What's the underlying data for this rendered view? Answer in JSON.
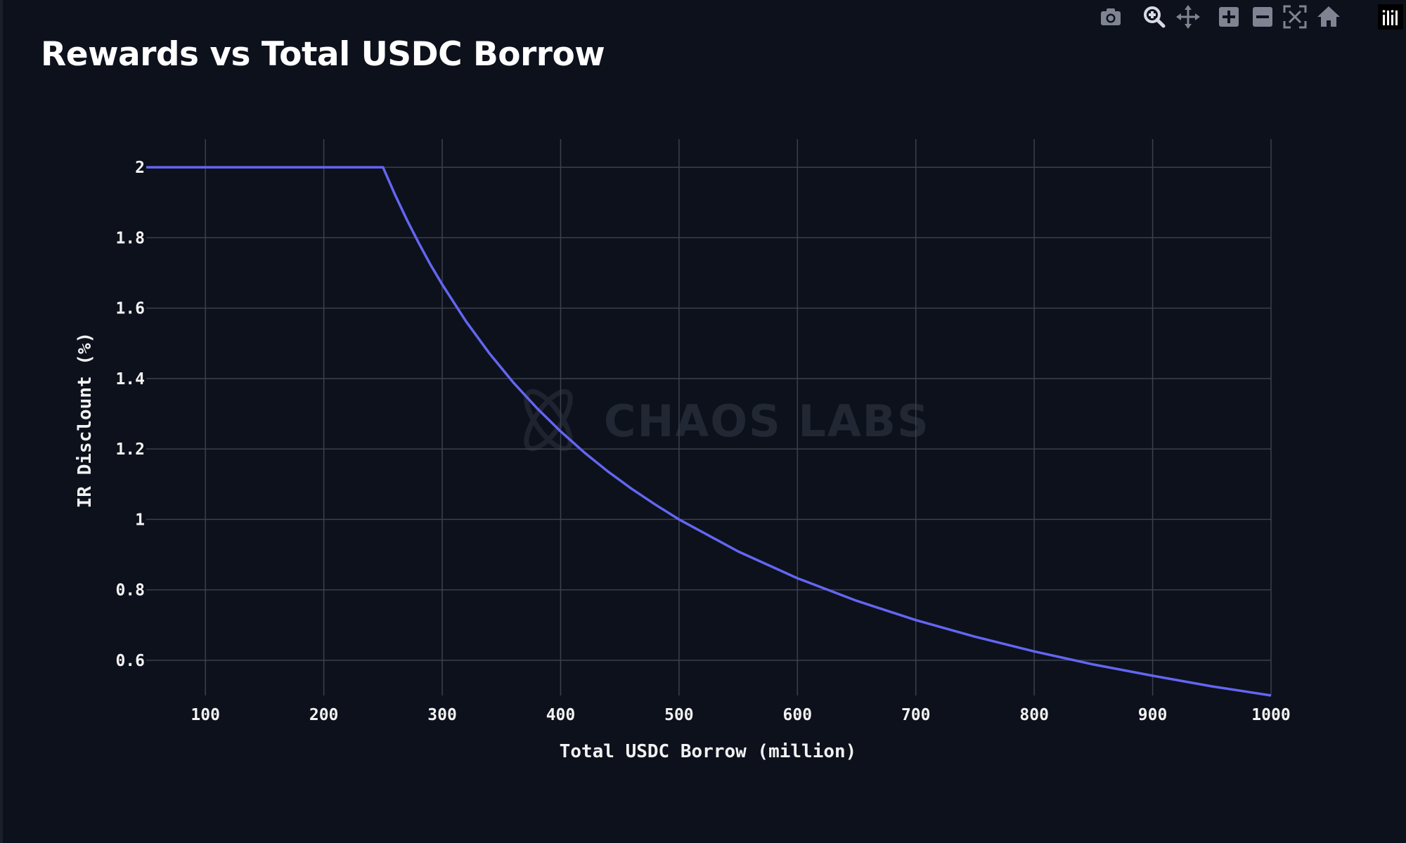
{
  "title": "Rewards vs Total USDC Borrow",
  "watermark": "CHAOS LABS",
  "toolbar": {
    "icons": [
      "camera-icon",
      "zoom-icon",
      "pan-icon",
      "zoom-in-icon",
      "zoom-out-icon",
      "autoscale-icon",
      "home-icon",
      "plotly-logo-icon"
    ]
  },
  "colors": {
    "background": "#0d111c",
    "grid": "#3a404d",
    "line": "#6366f1",
    "text": "#f2f2f2",
    "toolbar_icon": "#7e8491"
  },
  "chart_data": {
    "type": "line",
    "title": "Rewards vs Total USDC Borrow",
    "xlabel": "Total USDC Borrow (million)",
    "ylabel": "IR Disclount (%)",
    "xlim": [
      50,
      1000
    ],
    "ylim": [
      0.5,
      2.08
    ],
    "x_ticks": [
      100,
      200,
      300,
      400,
      500,
      600,
      700,
      800,
      900,
      1000
    ],
    "x_tick_labels": [
      "100",
      "200",
      "300",
      "400",
      "500",
      "600",
      "700",
      "800",
      "900",
      "1000"
    ],
    "y_ticks": [
      2,
      1.8,
      1.6,
      1.4,
      1.2,
      1,
      0.8,
      0.6
    ],
    "y_tick_labels": [
      "2",
      "1.8",
      "1.6",
      "1.4",
      "1.2",
      "1",
      "0.8",
      "0.6"
    ],
    "grid": true,
    "legend": "none",
    "series": [
      {
        "x": [
          50,
          100,
          150,
          200,
          250,
          260,
          270,
          280,
          290,
          300,
          320,
          340,
          360,
          380,
          400,
          420,
          440,
          460,
          480,
          500,
          550,
          600,
          650,
          700,
          750,
          800,
          850,
          900,
          950,
          1000
        ],
        "y": [
          2,
          2,
          2,
          2,
          2,
          1.923,
          1.852,
          1.786,
          1.724,
          1.667,
          1.563,
          1.471,
          1.389,
          1.316,
          1.25,
          1.19,
          1.136,
          1.087,
          1.042,
          1.0,
          0.909,
          0.833,
          0.769,
          0.714,
          0.667,
          0.625,
          0.588,
          0.556,
          0.526,
          0.5
        ]
      }
    ]
  }
}
